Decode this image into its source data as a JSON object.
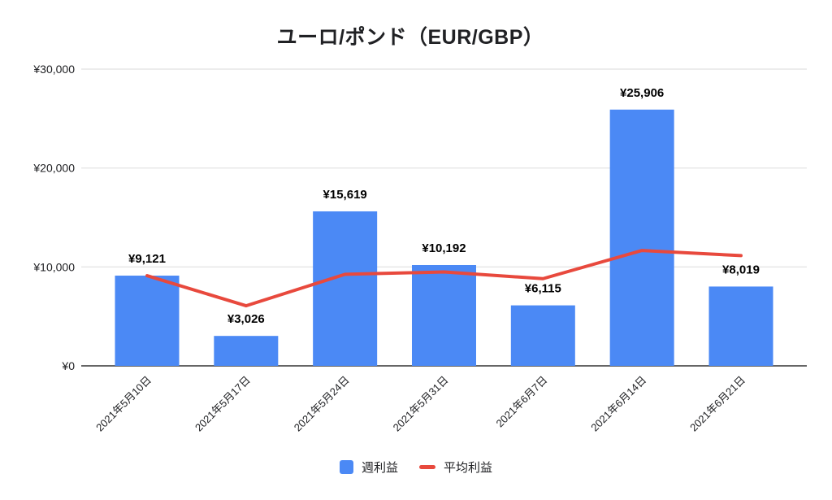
{
  "chart_data": {
    "type": "bar",
    "combo": "bar+line",
    "title": "ユーロ/ポンド（EUR/GBP）",
    "categories": [
      "2021年5月10日",
      "2021年5月17日",
      "2021年5月24日",
      "2021年5月31日",
      "2021年6月7日",
      "2021年6月14日",
      "2021年6月21日"
    ],
    "series": [
      {
        "name": "週利益",
        "type": "bar",
        "color": "#4b89f5",
        "values": [
          9121,
          3026,
          15619,
          10192,
          6115,
          25906,
          8019
        ],
        "labels": [
          "¥9,121",
          "¥3,026",
          "¥15,619",
          "¥10,192",
          "¥6,115",
          "¥25,906",
          "¥8,019"
        ]
      },
      {
        "name": "平均利益",
        "type": "line",
        "color": "#e8493d",
        "values": [
          9121,
          6074,
          9255,
          9490,
          8815,
          11663,
          11143
        ]
      }
    ],
    "y_axis": {
      "ticks": [
        {
          "value": 0,
          "label": "¥0"
        },
        {
          "value": 10000,
          "label": "¥10,000"
        },
        {
          "value": 20000,
          "label": "¥20,000"
        },
        {
          "value": 30000,
          "label": "¥30,000"
        }
      ],
      "range": [
        0,
        30000
      ],
      "grid": true
    },
    "legend_position": "bottom",
    "colors": {
      "grid": "#e0e0e0",
      "baseline": "#333333",
      "axis_text": "#202124",
      "data_label": "#000000",
      "background": "#ffffff"
    }
  }
}
